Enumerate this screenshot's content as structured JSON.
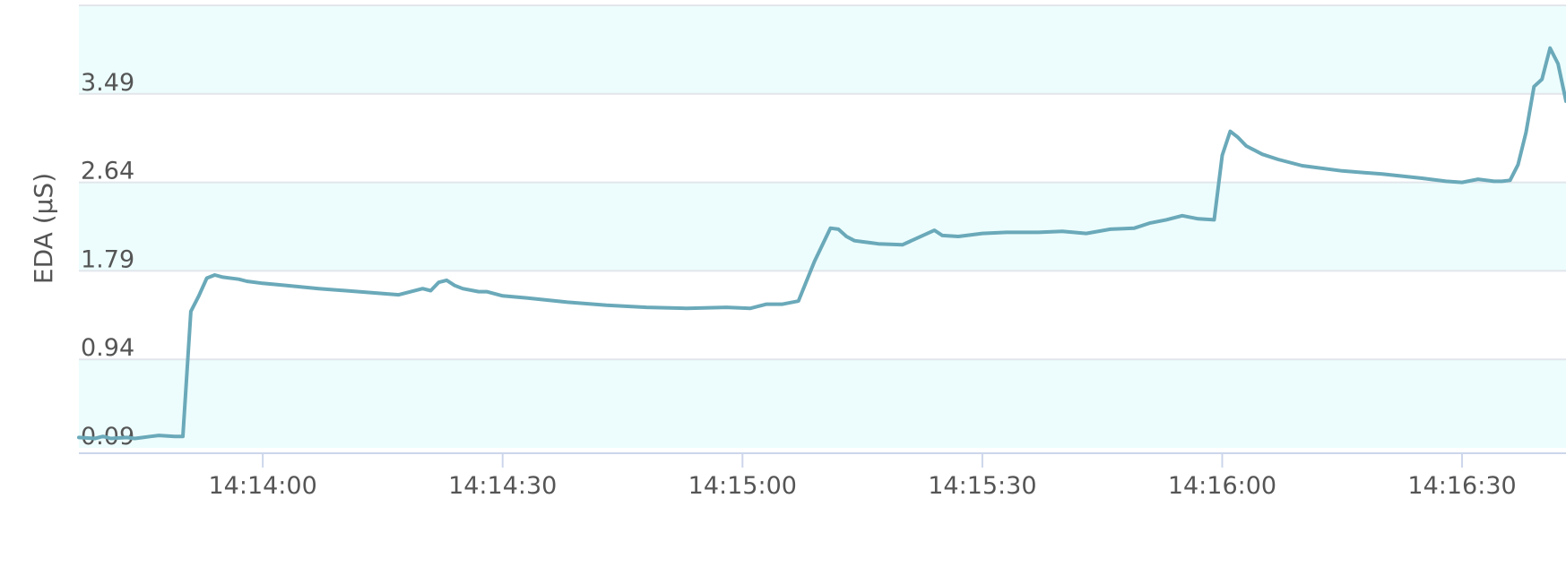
{
  "chart_data": {
    "type": "line",
    "title": "",
    "xlabel": "",
    "ylabel": "EDA (µS)",
    "x_unit": "time",
    "y_ticks": [
      "0.09",
      "0.94",
      "1.79",
      "2.64",
      "3.49"
    ],
    "y_tick_values": [
      0.09,
      0.94,
      1.79,
      2.64,
      3.49
    ],
    "x_ticks": [
      "14:14:00",
      "14:14:30",
      "14:15:00",
      "14:15:30",
      "14:16:00",
      "14:16:30"
    ],
    "xlim": [
      "14:13:37",
      "14:16:43"
    ],
    "ylim": [
      0.09,
      4.34
    ],
    "grid": true,
    "band_colors": [
      "#edfdfd",
      "#ffffff"
    ],
    "line_color": "#6aa9b9",
    "legend": "none",
    "series": [
      {
        "name": "",
        "x": [
          "14:13:37",
          "14:13:39",
          "14:13:40",
          "14:13:41",
          "14:13:43",
          "14:13:44",
          "14:13:45",
          "14:13:46",
          "14:13:47",
          "14:13:49",
          "14:13:50",
          "14:13:51",
          "14:13:52",
          "14:13:53",
          "14:13:54",
          "14:13:55",
          "14:13:57",
          "14:13:58",
          "14:14:00",
          "14:14:03",
          "14:14:07",
          "14:14:12",
          "14:14:17",
          "14:14:20",
          "14:14:21",
          "14:14:22",
          "14:14:23",
          "14:14:24",
          "14:14:25",
          "14:14:27",
          "14:14:28",
          "14:14:30",
          "14:14:33",
          "14:14:38",
          "14:14:43",
          "14:14:48",
          "14:14:53",
          "14:14:58",
          "14:15:01",
          "14:15:03",
          "14:15:05",
          "14:15:07",
          "14:15:09",
          "14:15:11",
          "14:15:12",
          "14:15:13",
          "14:15:14",
          "14:15:15",
          "14:15:16",
          "14:15:17",
          "14:15:20",
          "14:15:24",
          "14:15:25",
          "14:15:27",
          "14:15:30",
          "14:15:33",
          "14:15:37",
          "14:15:40",
          "14:15:43",
          "14:15:46",
          "14:15:49",
          "14:15:51",
          "14:15:53",
          "14:15:55",
          "14:15:57",
          "14:15:59",
          "14:16:00",
          "14:16:01",
          "14:16:02",
          "14:16:03",
          "14:16:05",
          "14:16:07",
          "14:16:10",
          "14:16:15",
          "14:16:20",
          "14:16:25",
          "14:16:28",
          "14:16:30",
          "14:16:32",
          "14:16:34",
          "14:16:35",
          "14:16:36",
          "14:16:37",
          "14:16:38",
          "14:16:39",
          "14:16:40",
          "14:16:41",
          "14:16:42",
          "14:16:43"
        ],
        "values": [
          0.19,
          0.18,
          0.2,
          0.18,
          0.19,
          0.18,
          0.19,
          0.2,
          0.21,
          0.2,
          0.2,
          1.4,
          1.55,
          1.72,
          1.75,
          1.73,
          1.71,
          1.69,
          1.67,
          1.65,
          1.62,
          1.59,
          1.56,
          1.62,
          1.6,
          1.68,
          1.7,
          1.65,
          1.62,
          1.59,
          1.59,
          1.55,
          1.53,
          1.49,
          1.46,
          1.44,
          1.43,
          1.44,
          1.43,
          1.47,
          1.47,
          1.5,
          1.88,
          2.2,
          2.19,
          2.12,
          2.08,
          2.07,
          2.06,
          2.05,
          2.04,
          2.18,
          2.13,
          2.12,
          2.15,
          2.16,
          2.16,
          2.17,
          2.15,
          2.19,
          2.2,
          2.25,
          2.28,
          2.32,
          2.29,
          2.28,
          2.9,
          3.13,
          3.07,
          2.99,
          2.91,
          2.86,
          2.8,
          2.75,
          2.72,
          2.68,
          2.65,
          2.64,
          2.67,
          2.65,
          2.65,
          2.66,
          2.81,
          3.12,
          3.56,
          3.63,
          3.93,
          3.78,
          3.42
        ]
      }
    ]
  }
}
